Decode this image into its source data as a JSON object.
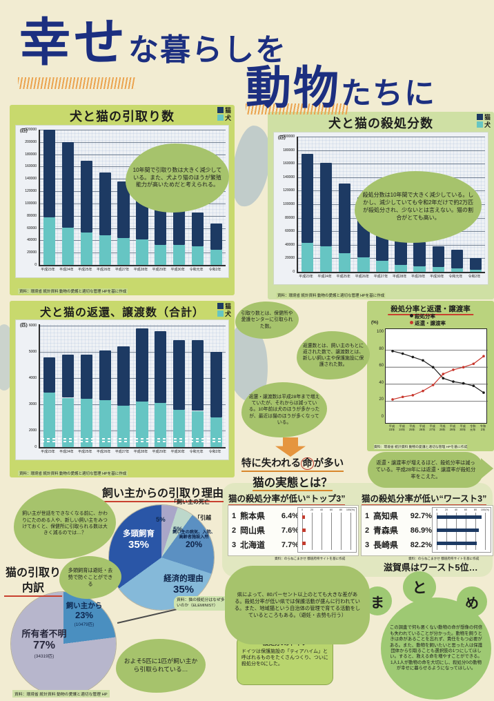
{
  "poster_title": {
    "hl1": "幸せ",
    "rest1": "な暮らしを",
    "hl2": "動物",
    "rest2": "たちに"
  },
  "chart_data": [
    {
      "id": "intake",
      "type": "bar",
      "stacked": true,
      "title": "犬と猫の引取り数",
      "unit": "(匹)",
      "ylim": [
        0,
        220000
      ],
      "yticks": [
        220000,
        200000,
        180000,
        160000,
        140000,
        120000,
        100000,
        80000,
        60000,
        40000,
        20000,
        0
      ],
      "categories": [
        "平成23年",
        "平成24年",
        "平成25年",
        "平成26年",
        "平成27年",
        "平成28年",
        "平成29年",
        "平成30年",
        "令和元年",
        "令和2年"
      ],
      "legend": [
        {
          "label": "猫",
          "color": "#1d3a63"
        },
        {
          "label": "犬",
          "color": "#66c5c3"
        }
      ],
      "series": [
        {
          "name": "犬",
          "color": "#66c5c3",
          "values": [
            78000,
            61000,
            53000,
            48000,
            44000,
            41000,
            33000,
            32000,
            30000,
            25000
          ]
        },
        {
          "name": "猫",
          "color": "#1d3a63",
          "values": [
            142000,
            139000,
            117000,
            102000,
            92000,
            75000,
            68000,
            64000,
            55000,
            42000
          ]
        }
      ],
      "bubble": "10年間で引取り数は大きく減少している。また、犬より猫のほうが繁殖能力が高いためだと考えられる。",
      "caption": "資料：環境省 統計資料 動物の愛護と適切な管理 HPを基に作成"
    },
    {
      "id": "cull",
      "type": "bar",
      "stacked": true,
      "title": "犬と猫の殺処分数",
      "unit": "(匹)",
      "ylim": [
        0,
        200000
      ],
      "yticks": [
        200000,
        180000,
        160000,
        140000,
        120000,
        100000,
        80000,
        60000,
        40000,
        20000,
        0
      ],
      "categories": [
        "平成23年",
        "平成24年",
        "平成25年",
        "平成26年",
        "平成27年",
        "平成28年",
        "平成29年",
        "平成30年",
        "令和元年",
        "令和2年"
      ],
      "legend": [
        {
          "label": "猫",
          "color": "#1d3a63"
        },
        {
          "label": "犬",
          "color": "#66c5c3"
        }
      ],
      "series": [
        {
          "name": "犬",
          "color": "#66c5c3",
          "values": [
            43000,
            38000,
            28000,
            21000,
            16000,
            10000,
            8000,
            7000,
            5000,
            3000
          ]
        },
        {
          "name": "猫",
          "color": "#1d3a63",
          "values": [
            132000,
            123000,
            103000,
            89000,
            75000,
            46000,
            36000,
            31000,
            28000,
            17000
          ]
        }
      ],
      "bubble": "殺処分数は10年間で大きく減少している。しかし、減少していても令和2年だけで約2万匹が殺処分され、少ないとは言えない。猫の割合がとても高い。",
      "caption": "資料：環境省 統計資料 動物の愛護と適切な管理 HPを基に作成"
    },
    {
      "id": "return",
      "type": "bar",
      "stacked": true,
      "ybreak": true,
      "title": "犬と猫の返還、譲渡数（合計）",
      "unit": "(匹)",
      "ylim": [
        0,
        6000
      ],
      "yticks": [
        6000,
        5000,
        4000,
        3000,
        2000,
        0
      ],
      "categories": [
        "平成23年",
        "平成24年",
        "平成25年",
        "平成26年",
        "平成27年",
        "平成28年",
        "平成29年",
        "平成30年",
        "令和元年",
        "令和2年"
      ],
      "legend": [
        {
          "label": "猫",
          "color": "#1d3a63"
        },
        {
          "label": "犬",
          "color": "#66c5c3"
        }
      ],
      "series": [
        {
          "name": "犬",
          "color": "#66c5c3",
          "values": [
            3450,
            3250,
            3200,
            3150,
            2950,
            3100,
            3050,
            2800,
            2750,
            2500
          ]
        },
        {
          "name": "猫",
          "color": "#1d3a63",
          "values": [
            1350,
            1650,
            1700,
            1900,
            2250,
            2800,
            2750,
            2650,
            2700,
            2500
          ]
        }
      ],
      "caption": "資料：環境省 統計資料 動物の愛護と適切な管理 HPを基に作成"
    },
    {
      "id": "rates",
      "type": "line",
      "title": "殺処分率と返還・譲渡率",
      "unit": "(%)",
      "ylim": [
        0,
        100
      ],
      "yticks": [
        100,
        80,
        60,
        40,
        20,
        0
      ],
      "categories": [
        "平成23年",
        "平成24年",
        "平成25年",
        "平成26年",
        "平成27年",
        "平成28年",
        "平成29年",
        "平成30年",
        "令和元年",
        "令和2年"
      ],
      "series": [
        {
          "name": "殺処分率",
          "color": "#1b1b1b",
          "values": [
            79,
            76,
            72,
            68,
            60,
            47,
            43,
            41,
            38,
            30
          ]
        },
        {
          "name": "返還・譲渡率",
          "color": "#c8372d",
          "values": [
            22,
            25,
            27,
            32,
            39,
            52,
            57,
            60,
            64,
            73
          ]
        }
      ],
      "bubble": "返還・譲渡率が増えるほど、殺処分率は減っている。平成28年には返還・譲渡率が殺処分率をこえた。",
      "caption": "資料：環境省 統計資料 動物の愛護と適切な管理 HPを基に作成"
    },
    {
      "id": "reasons",
      "type": "pie",
      "title": "飼い主からの引取り理由",
      "slices": [
        {
          "label": "飼い主の死亡",
          "value": 5,
          "pct": "5%",
          "color": "#a9a6c8"
        },
        {
          "label": "引越",
          "value": 5,
          "pct": "5%",
          "color": "#bdd8cb"
        },
        {
          "label": "飼い主の病気、入院、高齢者施設入所",
          "value": 20,
          "pct": "20%",
          "color": "#5b90c2"
        },
        {
          "label": "経済的理由",
          "value": 35,
          "pct": "35%",
          "color": "#85b9d9"
        },
        {
          "label": "多頭飼育",
          "value": 35,
          "pct": "35%",
          "color": "#2a56a7"
        }
      ]
    },
    {
      "id": "breakdown",
      "type": "pie",
      "title": "猫の引取り内訳",
      "slices": [
        {
          "label": "飼い主から",
          "value": 23,
          "pct": "23%",
          "count": "(10479匹)",
          "color": "#4a8fc0"
        },
        {
          "label": "所有者不明",
          "value": 77,
          "pct": "77%",
          "count": "(34319匹)",
          "color": "#b7b6cc"
        }
      ],
      "caption": "資料：環境省 統計資料 動物の愛護と適切な管理 HP"
    },
    {
      "id": "top3",
      "type": "hbar",
      "title": "猫の殺処分率が低い“トップ3”",
      "axis": [
        "0",
        "20",
        "40",
        "60",
        "80",
        "100(%)"
      ],
      "bar_color": "#c23b2e",
      "rows": [
        {
          "rank": "1",
          "pref": "熊本県",
          "pct": "6.4%",
          "value": 6.4
        },
        {
          "rank": "2",
          "pref": "岡山県",
          "pct": "7.6%",
          "value": 7.6
        },
        {
          "rank": "3",
          "pref": "北海道",
          "pct": "7.7%",
          "value": 7.7
        }
      ],
      "caption": "資料：のらねこまかせ 都道府県サイトを基に作成"
    },
    {
      "id": "worst3",
      "type": "hbar",
      "title": "猫の殺処分率が低い“ワースト3”",
      "axis": [
        "0",
        "20",
        "40",
        "60",
        "80",
        "100(%)"
      ],
      "bar_color": "#1d3a63",
      "rows": [
        {
          "rank": "1",
          "pref": "高知県",
          "pct": "92.7%",
          "value": 92.7
        },
        {
          "rank": "2",
          "pref": "青森県",
          "pct": "86.9%",
          "value": 86.9
        },
        {
          "rank": "3",
          "pref": "長崎県",
          "pct": "82.2%",
          "value": 82.2
        }
      ],
      "caption": "資料：のらねこまかせ 都道府県サイトを基に作成"
    }
  ],
  "middle": {
    "def_intake": "引取り数とは、保健所や愛護センターに引取られた数。",
    "def_return": "返還数とは、飼い主のもとに返された数で、譲渡数とは、新しい飼い主や保護施設に保護された数。",
    "trend": "返還・譲渡数は平成28年まで増えていたが、それからは減っている。10年前は犬のほうが多かったが、最近は猫のほうが多くなっている。",
    "headline_pre": "特に失われる",
    "headline_circle": "命",
    "headline_post": "が多い",
    "headline_line2": "猫の実態とは？"
  },
  "bottom": {
    "owner_bubble": "飼い主が世話をできなくなる前に、かわりにたのめる人や、新しい飼い主をみつけておくと、保健所に引取られる数は大きく減るのでは…？",
    "tatou_bubble": "多頭飼育は避妊・去勢で防ぐことができる",
    "fifth_bubble": "およそ5匹に1匹が飼い主から引取られている…",
    "eleminist": "資料：猫の殺処分はなぜ多いのか（ELEMINIST）",
    "pref_bubble": "県によって、80パーセント以上のとても大きな差がある。殺処分率が低い県では保護活動が盛んに行われている。また、地域猫という自治体の管理で育てる活動をしているところもある。（避妊・去勢も行う）",
    "germany_title": "殺処分0のドイツ",
    "germany_body": "ドイツは保護施設の「ティアハイム」と呼ばれるものをたくさんつくり、ついに殺処分を0にした。",
    "shiga": "滋賀県はワースト5位…"
  },
  "matome": {
    "c1": "ま",
    "c2": "と",
    "c3": "め",
    "text": "この調査で何も悪くない動物の命が想像の何倍も失われていることが分かった。動物を飼うときは命があることを忘れず、責任をもつ必要がある。また、動物を飼いたいと思った人は保護団体から引取ることも選択肢の1つにしてほしい。すると、救える命を増やすことができる。1人1人が動物の命を大切にし、殺処分0の動物が幸せに暮らせるようになってほしい。"
  }
}
